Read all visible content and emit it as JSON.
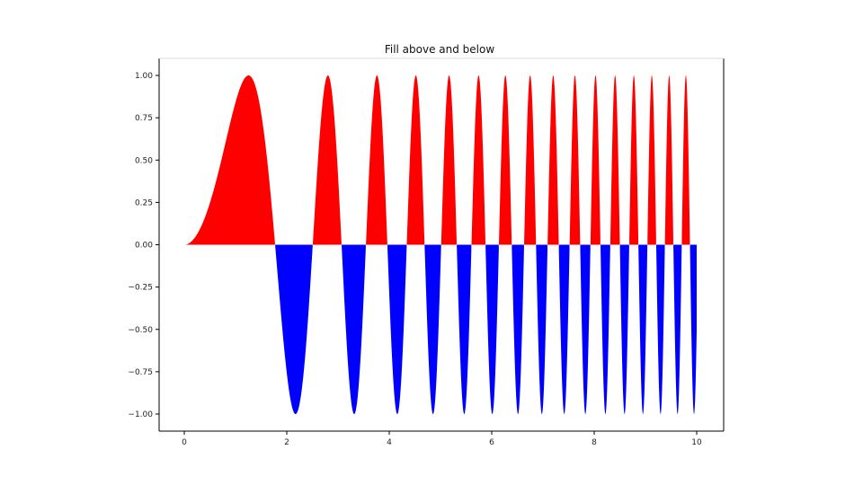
{
  "chart_data": {
    "type": "area",
    "title": "Fill above and below",
    "xlabel": "",
    "ylabel": "",
    "function": "y = sin(x^2)",
    "x_range": [
      0,
      10
    ],
    "xlim": [
      -0.5,
      10.5
    ],
    "ylim": [
      -1.1,
      1.1
    ],
    "x_ticks": [
      0,
      2,
      4,
      6,
      8,
      10
    ],
    "x_tick_labels": [
      "0",
      "2",
      "4",
      "6",
      "8",
      "10"
    ],
    "y_ticks": [
      1.0,
      0.75,
      0.5,
      0.25,
      0.0,
      -0.25,
      -0.5,
      -0.75,
      -1.0
    ],
    "y_tick_labels": [
      "1.00",
      "0.75",
      "0.50",
      "0.25",
      "0.00",
      "−0.25",
      "−0.50",
      "−0.75",
      "−1.00"
    ],
    "grid": false,
    "series": [
      {
        "fill": "above zero",
        "color": "#ff0000"
      },
      {
        "fill": "below zero",
        "color": "#0000ff"
      }
    ],
    "peaks": [
      {
        "x": 1.25,
        "y": 1.0
      },
      {
        "x": 2.17,
        "y": -1.0
      },
      {
        "x": 2.8,
        "y": 1.0
      },
      {
        "x": 3.31,
        "y": -1.0
      },
      {
        "x": 3.76,
        "y": 1.0
      },
      {
        "x": 4.15,
        "y": -1.0
      },
      {
        "x": 4.51,
        "y": 1.0
      },
      {
        "x": 4.85,
        "y": -1.0
      },
      {
        "x": 5.17,
        "y": 1.0
      },
      {
        "x": 5.48,
        "y": -1.0
      },
      {
        "x": 5.76,
        "y": 1.0
      },
      {
        "x": 6.04,
        "y": -1.0
      },
      {
        "x": 6.3,
        "y": 1.0
      },
      {
        "x": 6.56,
        "y": -1.0
      },
      {
        "x": 6.8,
        "y": 1.0
      },
      {
        "x": 7.04,
        "y": -1.0
      },
      {
        "x": 7.27,
        "y": 1.0
      },
      {
        "x": 7.5,
        "y": -1.0
      },
      {
        "x": 7.72,
        "y": 1.0
      },
      {
        "x": 7.93,
        "y": -1.0
      },
      {
        "x": 8.14,
        "y": 1.0
      },
      {
        "x": 8.34,
        "y": -1.0
      },
      {
        "x": 8.54,
        "y": 1.0
      },
      {
        "x": 8.74,
        "y": -1.0
      },
      {
        "x": 8.93,
        "y": 1.0
      },
      {
        "x": 9.12,
        "y": -1.0
      },
      {
        "x": 9.3,
        "y": 1.0
      },
      {
        "x": 9.48,
        "y": -1.0
      },
      {
        "x": 9.66,
        "y": 1.0
      },
      {
        "x": 9.84,
        "y": -1.0
      }
    ]
  }
}
